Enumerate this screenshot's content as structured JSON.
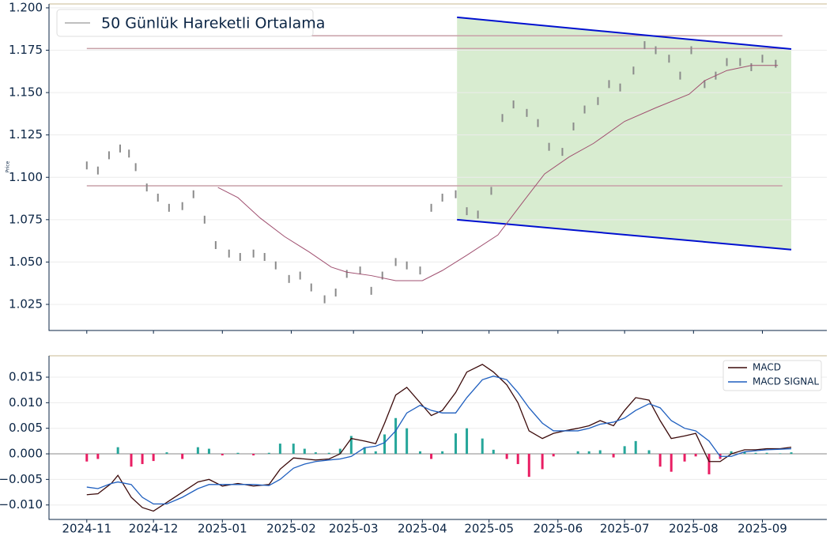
{
  "chart_data": [
    {
      "type": "price",
      "y_label": "Price",
      "x": [
        0,
        5,
        10,
        15,
        19,
        22,
        27,
        32,
        37,
        43,
        48,
        53,
        58,
        64,
        69,
        75,
        80,
        85,
        91,
        96,
        101,
        107,
        112,
        117,
        123,
        128,
        133,
        139,
        144,
        150,
        155,
        160,
        166,
        171,
        176,
        182,
        187,
        192,
        198,
        203,
        208,
        214,
        219,
        224,
        230,
        235,
        240,
        246,
        251,
        256,
        262,
        267,
        272,
        278,
        283,
        288,
        294,
        299,
        304,
        310
      ],
      "values": [
        1.107,
        1.104,
        1.113,
        1.117,
        1.114,
        1.106,
        1.094,
        1.088,
        1.082,
        1.083,
        1.09,
        1.075,
        1.06,
        1.055,
        1.053,
        1.055,
        1.053,
        1.048,
        1.04,
        1.042,
        1.035,
        1.028,
        1.032,
        1.043,
        1.045,
        1.033,
        1.042,
        1.05,
        1.048,
        1.045,
        1.082,
        1.088,
        1.09,
        1.08,
        1.078,
        1.092,
        1.135,
        1.143,
        1.138,
        1.132,
        1.118,
        1.115,
        1.13,
        1.14,
        1.145,
        1.155,
        1.153,
        1.163,
        1.178,
        1.175,
        1.17,
        1.16,
        1.175,
        1.155,
        1.16,
        1.168,
        1.168,
        1.165,
        1.17,
        1.167
      ],
      "color": "#8a8a8a",
      "moving_average": {
        "name": "50 Günlük Hareketli Ortalama",
        "color": "#a05070",
        "legend_color": "#aaaaaa",
        "x": [
          59,
          68,
          78,
          89,
          100,
          110,
          117,
          128,
          139,
          151,
          160,
          171,
          185,
          196,
          206,
          217,
          228,
          242,
          256,
          271,
          278,
          288,
          299,
          311
        ],
        "values": [
          1.094,
          1.088,
          1.076,
          1.065,
          1.056,
          1.047,
          1.044,
          1.042,
          1.039,
          1.039,
          1.045,
          1.054,
          1.066,
          1.085,
          1.102,
          1.112,
          1.12,
          1.133,
          1.141,
          1.149,
          1.157,
          1.163,
          1.166,
          1.166
        ]
      },
      "levels": [
        1.1835,
        1.176,
        1.095
      ],
      "level_x": [
        0,
        313
      ],
      "level_color": "#c8a0a8",
      "channel": {
        "x": [
          166.6,
          317
        ],
        "upper": [
          1.1944,
          1.1757
        ],
        "lower": [
          1.075,
          1.0573
        ],
        "line_color": "#0010d0",
        "fill": "#d8ecd0"
      },
      "xlim": [
        -17,
        333
      ],
      "ylim": [
        1.0096,
        1.2023
      ],
      "yticks": [
        {
          "value": 1.025,
          "label": "1.025"
        },
        {
          "value": 1.05,
          "label": "1.050"
        },
        {
          "value": 1.075,
          "label": "1.075"
        },
        {
          "value": 1.1,
          "label": "1.100"
        },
        {
          "value": 1.125,
          "label": "1.125"
        },
        {
          "value": 1.15,
          "label": "1.150"
        },
        {
          "value": 1.175,
          "label": "1.175"
        },
        {
          "value": 1.2,
          "label": "1.200"
        }
      ],
      "grid": true
    },
    {
      "type": "macd",
      "x": [
        0,
        5,
        11,
        14,
        20,
        25,
        30,
        36,
        43,
        50,
        55,
        61,
        68,
        75,
        82,
        87,
        93,
        98,
        103,
        109,
        114,
        119,
        125,
        130,
        134,
        139,
        144,
        150,
        155,
        160,
        166,
        171,
        178,
        183,
        189,
        194,
        199,
        205,
        210,
        215,
        221,
        226,
        231,
        237,
        242,
        247,
        253,
        258,
        263,
        269,
        274,
        280,
        285,
        290,
        296,
        301,
        306,
        312,
        317
      ],
      "series": [
        {
          "name": "MACD",
          "color": "#3b0a0a",
          "values": [
            -0.008,
            -0.0078,
            -0.0058,
            -0.0042,
            -0.0085,
            -0.0105,
            -0.0112,
            -0.0095,
            -0.0075,
            -0.0055,
            -0.005,
            -0.0063,
            -0.0058,
            -0.0063,
            -0.006,
            -0.003,
            -0.0008,
            -0.001,
            -0.0012,
            -0.001,
            0,
            0.003,
            0.0025,
            0.002,
            0.006,
            0.0115,
            0.013,
            0.01,
            0.0075,
            0.0085,
            0.012,
            0.016,
            0.0175,
            0.016,
            0.0135,
            0.01,
            0.0045,
            0.003,
            0.004,
            0.0045,
            0.005,
            0.0055,
            0.0065,
            0.0055,
            0.0085,
            0.011,
            0.0105,
            0.0065,
            0.003,
            0.0035,
            0.004,
            -0.0015,
            -0.0015,
            0,
            0.0008,
            0.0008,
            0.001,
            0.001,
            0.0013
          ]
        },
        {
          "name": "MACD SIGNAL",
          "color": "#1f5fbf",
          "values": [
            -0.0065,
            -0.0068,
            -0.0058,
            -0.0055,
            -0.006,
            -0.0085,
            -0.0098,
            -0.0098,
            -0.0085,
            -0.0068,
            -0.006,
            -0.006,
            -0.006,
            -0.006,
            -0.0062,
            -0.005,
            -0.0028,
            -0.002,
            -0.0015,
            -0.0012,
            -0.001,
            -0.0005,
            0.0012,
            0.0015,
            0.0022,
            0.0045,
            0.008,
            0.0095,
            0.0085,
            0.008,
            0.008,
            0.011,
            0.0145,
            0.0152,
            0.0145,
            0.012,
            0.009,
            0.006,
            0.0045,
            0.0045,
            0.0045,
            0.005,
            0.0058,
            0.0062,
            0.007,
            0.0085,
            0.0098,
            0.009,
            0.0065,
            0.005,
            0.0045,
            0.0025,
            -0.0005,
            -0.0005,
            0.0004,
            0.0006,
            0.0008,
            0.0009,
            0.001
          ]
        }
      ],
      "histogram": {
        "positive_color": "#26a69a",
        "negative_color": "#e91e63",
        "values": [
          -0.0015,
          -0.001,
          0,
          0.0013,
          -0.0025,
          -0.002,
          -0.0014,
          0.0003,
          -0.001,
          0.0013,
          0.001,
          -0.0003,
          0.0002,
          -0.0003,
          0.0002,
          0.002,
          0.002,
          0.001,
          0.0003,
          0.0002,
          0.001,
          0.0035,
          0.0013,
          0.0005,
          0.0038,
          0.007,
          0.005,
          0.0005,
          -0.001,
          0.0005,
          0.004,
          0.005,
          0.003,
          0.0008,
          -0.001,
          -0.002,
          -0.0045,
          -0.003,
          -0.0005,
          0,
          0.0005,
          0.0005,
          0.0007,
          -0.0007,
          0.0015,
          0.0025,
          0.0007,
          -0.0025,
          -0.0035,
          -0.0015,
          -0.0005,
          -0.004,
          -0.001,
          0.0005,
          0.0004,
          0.0002,
          0.0002,
          0.0001,
          0.0003
        ]
      },
      "xlim": [
        -17,
        333
      ],
      "ylim": [
        -0.01283,
        0.01918
      ],
      "xticks": [
        {
          "value": 0,
          "label": "2024-11"
        },
        {
          "value": 30,
          "label": "2024-12"
        },
        {
          "value": 61,
          "label": "2025-01"
        },
        {
          "value": 92,
          "label": "2025-02"
        },
        {
          "value": 120,
          "label": "2025-03"
        },
        {
          "value": 151,
          "label": "2025-04"
        },
        {
          "value": 181,
          "label": "2025-05"
        },
        {
          "value": 212,
          "label": "2025-06"
        },
        {
          "value": 242,
          "label": "2025-07"
        },
        {
          "value": 273,
          "label": "2025-08"
        },
        {
          "value": 304,
          "label": "2025-09"
        }
      ],
      "yticks": [
        {
          "value": -0.01,
          "label": "−0.010"
        },
        {
          "value": -0.005,
          "label": "−0.005"
        },
        {
          "value": 0,
          "label": "0.000"
        },
        {
          "value": 0.005,
          "label": "0.005"
        },
        {
          "value": 0.01,
          "label": "0.010"
        },
        {
          "value": 0.015,
          "label": "0.015"
        }
      ],
      "grid": true
    }
  ]
}
